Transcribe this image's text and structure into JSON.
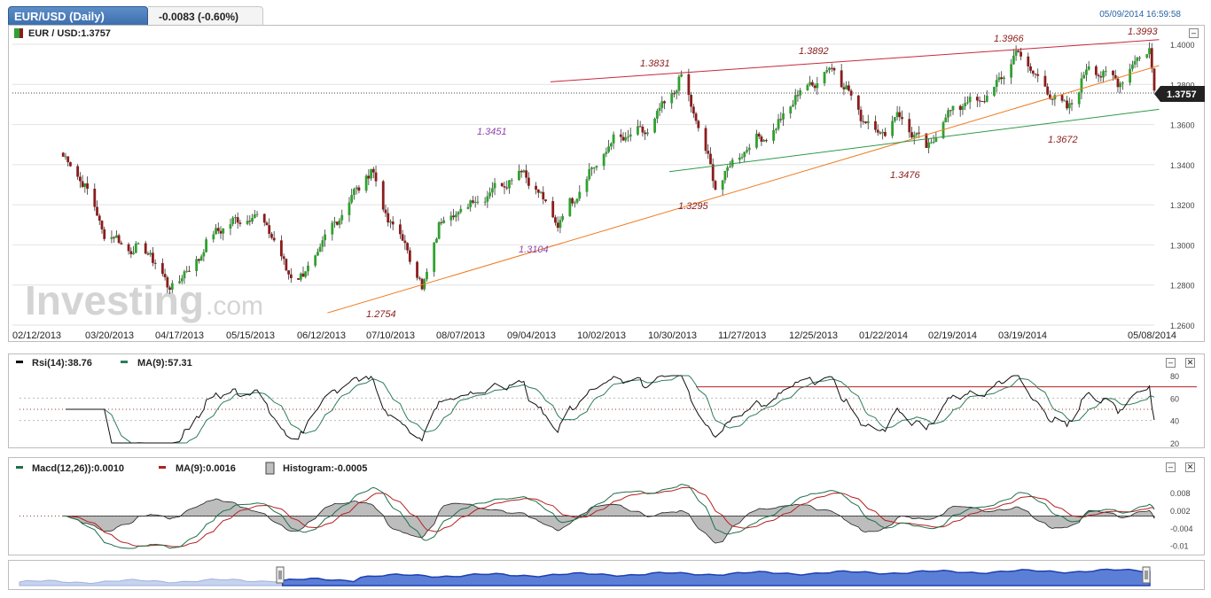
{
  "header": {
    "tab_title": "EUR/USD (Daily)",
    "change": "-0.0083 (-0.60%)",
    "timestamp": "05/09/2014 16:59:58"
  },
  "price_panel": {
    "legend": "EUR / USD:1.3757",
    "last_price": "1.3757",
    "watermark_bold": "Investing",
    "watermark_suffix": ".com"
  },
  "rsi_panel": {
    "rsi_legend": "Rsi(14):38.76",
    "ma_legend": "MA(9):57.31"
  },
  "macd_panel": {
    "macd_legend": "Macd(12,26)):0.0010",
    "ma_legend": "MA(9):0.0016",
    "hist_legend": "Histogram:-0.0005"
  },
  "colors": {
    "up_candle": "#2fa12f",
    "down_candle": "#8b1c1c",
    "resistance": "#c8283c",
    "support_orange": "#f07a1e",
    "support_green": "#2e9a4a",
    "nav_fill": "#5b7fd6"
  },
  "chart_data": [
    {
      "type": "candlestick",
      "title": "EUR / USD",
      "x_ticks": [
        "02/12/2013",
        "03/20/2013",
        "04/17/2013",
        "05/15/2013",
        "06/12/2013",
        "07/10/2013",
        "08/07/2013",
        "09/04/2013",
        "10/02/2013",
        "10/30/2013",
        "11/27/2013",
        "12/25/2013",
        "01/22/2014",
        "02/19/2014",
        "03/19/2014",
        "05/08/2014"
      ],
      "y_ticks": [
        "1.4000",
        "1.3800",
        "1.3600",
        "1.3400",
        "1.3200",
        "1.3000",
        "1.2800",
        "1.2600"
      ],
      "ylim": [
        1.26,
        1.4
      ],
      "last": 1.3757,
      "grid": true,
      "close_path": [
        [
          "02/12/2013",
          1.344
        ],
        [
          "02/20/2013",
          1.332
        ],
        [
          "03/01/2013",
          1.306
        ],
        [
          "03/12/2013",
          1.298
        ],
        [
          "03/20/2013",
          1.296
        ],
        [
          "03/27/2013",
          1.279
        ],
        [
          "04/04/2013",
          1.286
        ],
        [
          "04/17/2013",
          1.308
        ],
        [
          "05/01/2013",
          1.315
        ],
        [
          "05/08/2013",
          1.308
        ],
        [
          "05/15/2013",
          1.287
        ],
        [
          "05/22/2013",
          1.284
        ],
        [
          "06/05/2013",
          1.313
        ],
        [
          "06/19/2013",
          1.338
        ],
        [
          "06/25/2013",
          1.315
        ],
        [
          "07/02/2013",
          1.302
        ],
        [
          "07/09/2013",
          1.284
        ],
        [
          "07/10/2013",
          1.2754
        ],
        [
          "07/17/2013",
          1.311
        ],
        [
          "08/01/2013",
          1.322
        ],
        [
          "08/14/2013",
          1.332
        ],
        [
          "08/21/2013",
          1.337
        ],
        [
          "09/04/2013",
          1.3104
        ],
        [
          "09/16/2013",
          1.334
        ],
        [
          "09/27/2013",
          1.352
        ],
        [
          "10/11/2013",
          1.357
        ],
        [
          "10/25/2013",
          1.3831
        ],
        [
          "11/01/2013",
          1.359
        ],
        [
          "11/08/2013",
          1.3295
        ],
        [
          "11/20/2013",
          1.348
        ],
        [
          "12/03/2013",
          1.358
        ],
        [
          "12/11/2013",
          1.374
        ],
        [
          "12/27/2013",
          1.3892
        ],
        [
          "01/06/2014",
          1.366
        ],
        [
          "01/15/2014",
          1.355
        ],
        [
          "01/22/2014",
          1.365
        ],
        [
          "02/03/2014",
          1.3476
        ],
        [
          "02/14/2014",
          1.369
        ],
        [
          "02/28/2014",
          1.373
        ],
        [
          "03/13/2014",
          1.3966
        ],
        [
          "03/21/2014",
          1.382
        ],
        [
          "04/02/2014",
          1.3672
        ],
        [
          "04/11/2014",
          1.389
        ],
        [
          "04/23/2014",
          1.381
        ],
        [
          "05/06/2014",
          1.3993
        ],
        [
          "05/08/2014",
          1.3757
        ]
      ],
      "annotations": [
        {
          "text": "1.3831",
          "x": "10/28/2013",
          "y": 1.3831
        },
        {
          "text": "1.3892",
          "x": "12/23/2013",
          "y": 1.3892
        },
        {
          "text": "1.3966",
          "x": "03/12/2014",
          "y": 1.3966
        },
        {
          "text": "1.3993",
          "x": "05/06/2014",
          "y": 1.3993
        },
        {
          "text": "1.3451",
          "x": "08/28/2013",
          "y": 1.3451
        },
        {
          "text": "1.3104",
          "x": "09/04/2013",
          "y": 1.3104
        },
        {
          "text": "1.2754",
          "x": "07/10/2013",
          "y": 1.2754
        },
        {
          "text": "1.3295",
          "x": "11/08/2013",
          "y": 1.3295
        },
        {
          "text": "1.3476",
          "x": "02/03/2014",
          "y": 1.3476
        },
        {
          "text": "1.3672",
          "x": "04/02/2014",
          "y": 1.3672
        }
      ],
      "trend_lines": [
        {
          "name": "resistance",
          "color": "#c8283c"
        },
        {
          "name": "support",
          "color": "#f07a1e"
        },
        {
          "name": "support",
          "color": "#2e9a4a"
        }
      ]
    },
    {
      "type": "line",
      "title": "Rsi(14)",
      "y_ticks": [
        "80",
        "60",
        "40",
        "20"
      ],
      "ylim": [
        20,
        80
      ],
      "series": [
        {
          "name": "Rsi(14)",
          "last": 38.76
        },
        {
          "name": "MA(9)",
          "last": 57.31
        }
      ]
    },
    {
      "type": "line",
      "title": "Macd(12,26))",
      "y_ticks": [
        "0.008",
        "0.002",
        "-0.004",
        "-0.01"
      ],
      "ylim": [
        -0.011,
        0.011
      ],
      "series": [
        {
          "name": "Macd(12,26))",
          "last": 0.001
        },
        {
          "name": "MA(9)",
          "last": 0.0016
        },
        {
          "name": "Histogram",
          "last": -0.0005
        }
      ]
    }
  ]
}
